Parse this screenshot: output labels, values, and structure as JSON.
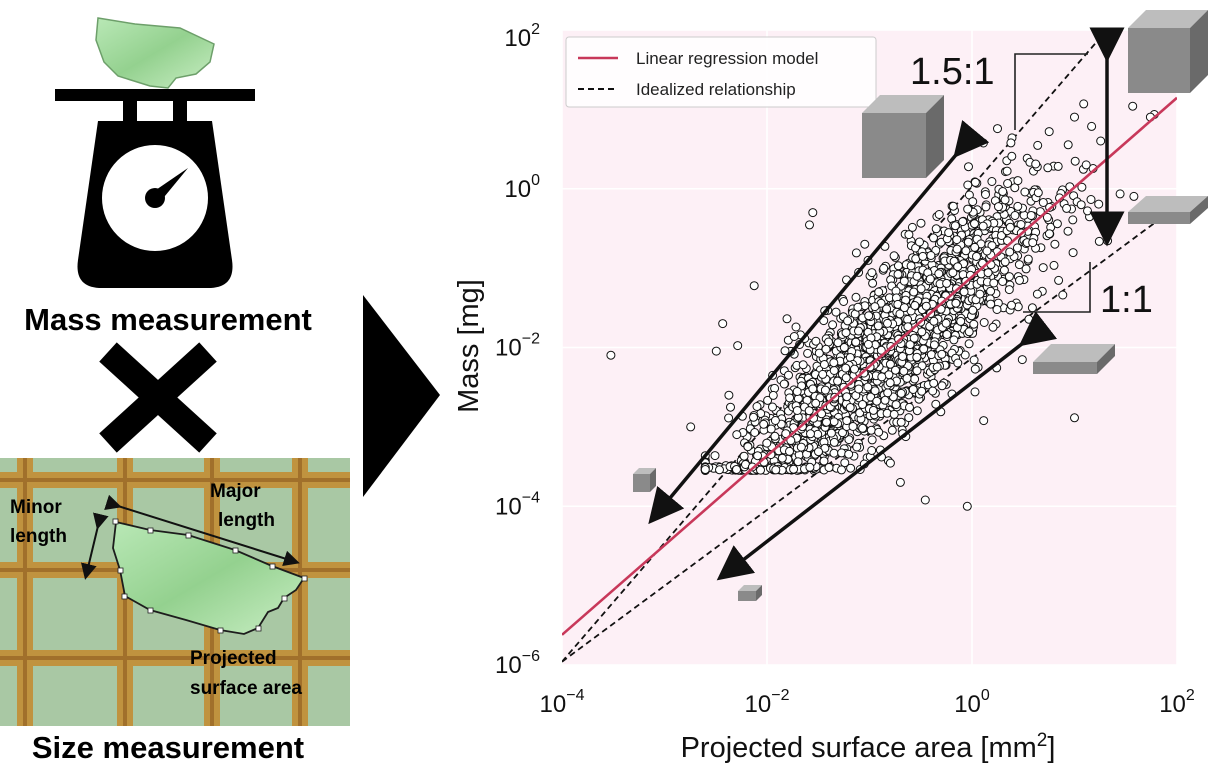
{
  "left_panel": {
    "mass_label": "Mass measurement",
    "size_label": "Size measurement",
    "minor_length_line1": "Minor",
    "minor_length_line2": "length",
    "major_length_line1": "Major",
    "major_length_line2": "length",
    "area_line1": "Projected",
    "area_line2": "surface area"
  },
  "colors": {
    "regression": "#c8385a",
    "plot_bg": "#fdf0f6",
    "grid_paper": "#a7c6a3",
    "grid_line": "#c98a2c",
    "fragment": "#a9dea8"
  },
  "chart_data": {
    "type": "scatter",
    "xlabel": "Projected surface area [mm",
    "xlabel_sup": "2",
    "xlabel_end": "]",
    "ylabel": "Mass [mg]",
    "x_scale": "log",
    "y_scale": "log",
    "xlim": [
      0.0001,
      100
    ],
    "ylim": [
      1e-06,
      100
    ],
    "x_ticks": [
      {
        "value": 0.0001,
        "base": "10",
        "exp": "−4"
      },
      {
        "value": 0.01,
        "base": "10",
        "exp": "−2"
      },
      {
        "value": 1,
        "base": "10",
        "exp": "0"
      },
      {
        "value": 100,
        "base": "10",
        "exp": "2"
      }
    ],
    "y_ticks": [
      {
        "value": 1e-06,
        "base": "10",
        "exp": "−6"
      },
      {
        "value": 0.0001,
        "base": "10",
        "exp": "−4"
      },
      {
        "value": 0.01,
        "base": "10",
        "exp": "−2"
      },
      {
        "value": 1,
        "base": "10",
        "exp": "0"
      },
      {
        "value": 100,
        "base": "10",
        "exp": "2"
      }
    ],
    "grid": true,
    "legend_position": "top-left",
    "legend": [
      {
        "label": "Linear regression model",
        "style": "solid",
        "color": "#c8385a"
      },
      {
        "label": "Idealized relationship",
        "style": "dashed",
        "color": "#000000"
      }
    ],
    "regression_line": {
      "points": [
        [
          0.0001,
          2.4e-06
        ],
        [
          100,
          14
        ]
      ]
    },
    "ideal_lines": [
      {
        "ratio": "1.5:1",
        "points": [
          [
            0.0001,
            1.1e-06
          ],
          [
            20,
            95
          ]
        ]
      },
      {
        "ratio": "1:1",
        "points": [
          [
            0.0001,
            1.1e-06
          ],
          [
            100,
            0.6
          ]
        ]
      }
    ],
    "annotations": [
      {
        "text": "1.5:1"
      },
      {
        "text": "1:1"
      }
    ],
    "scatter_outliers": [
      [
        0.0003,
        0.008
      ],
      [
        0.0032,
        0.009
      ],
      [
        0.0037,
        0.02
      ],
      [
        0.0018,
        0.001
      ],
      [
        0.0075,
        0.06
      ],
      [
        0.028,
        0.5
      ],
      [
        0.026,
        0.35
      ],
      [
        0.09,
        0.2
      ],
      [
        0.03,
        0.012
      ],
      [
        0.06,
        0.0012
      ],
      [
        0.16,
        0.00035
      ],
      [
        0.2,
        0.0002
      ],
      [
        0.35,
        0.00012
      ],
      [
        0.9,
        0.0001
      ],
      [
        1.3,
        0.0012
      ],
      [
        7,
        0.07
      ],
      [
        10,
        0.0013
      ],
      [
        13,
        2
      ],
      [
        18,
        4
      ],
      [
        38,
        0.8
      ],
      [
        55,
        8
      ],
      [
        10,
        8
      ]
    ],
    "scatter_cloud": {
      "x_range": [
        0.0025,
        60
      ],
      "description_points": 2500
    }
  }
}
